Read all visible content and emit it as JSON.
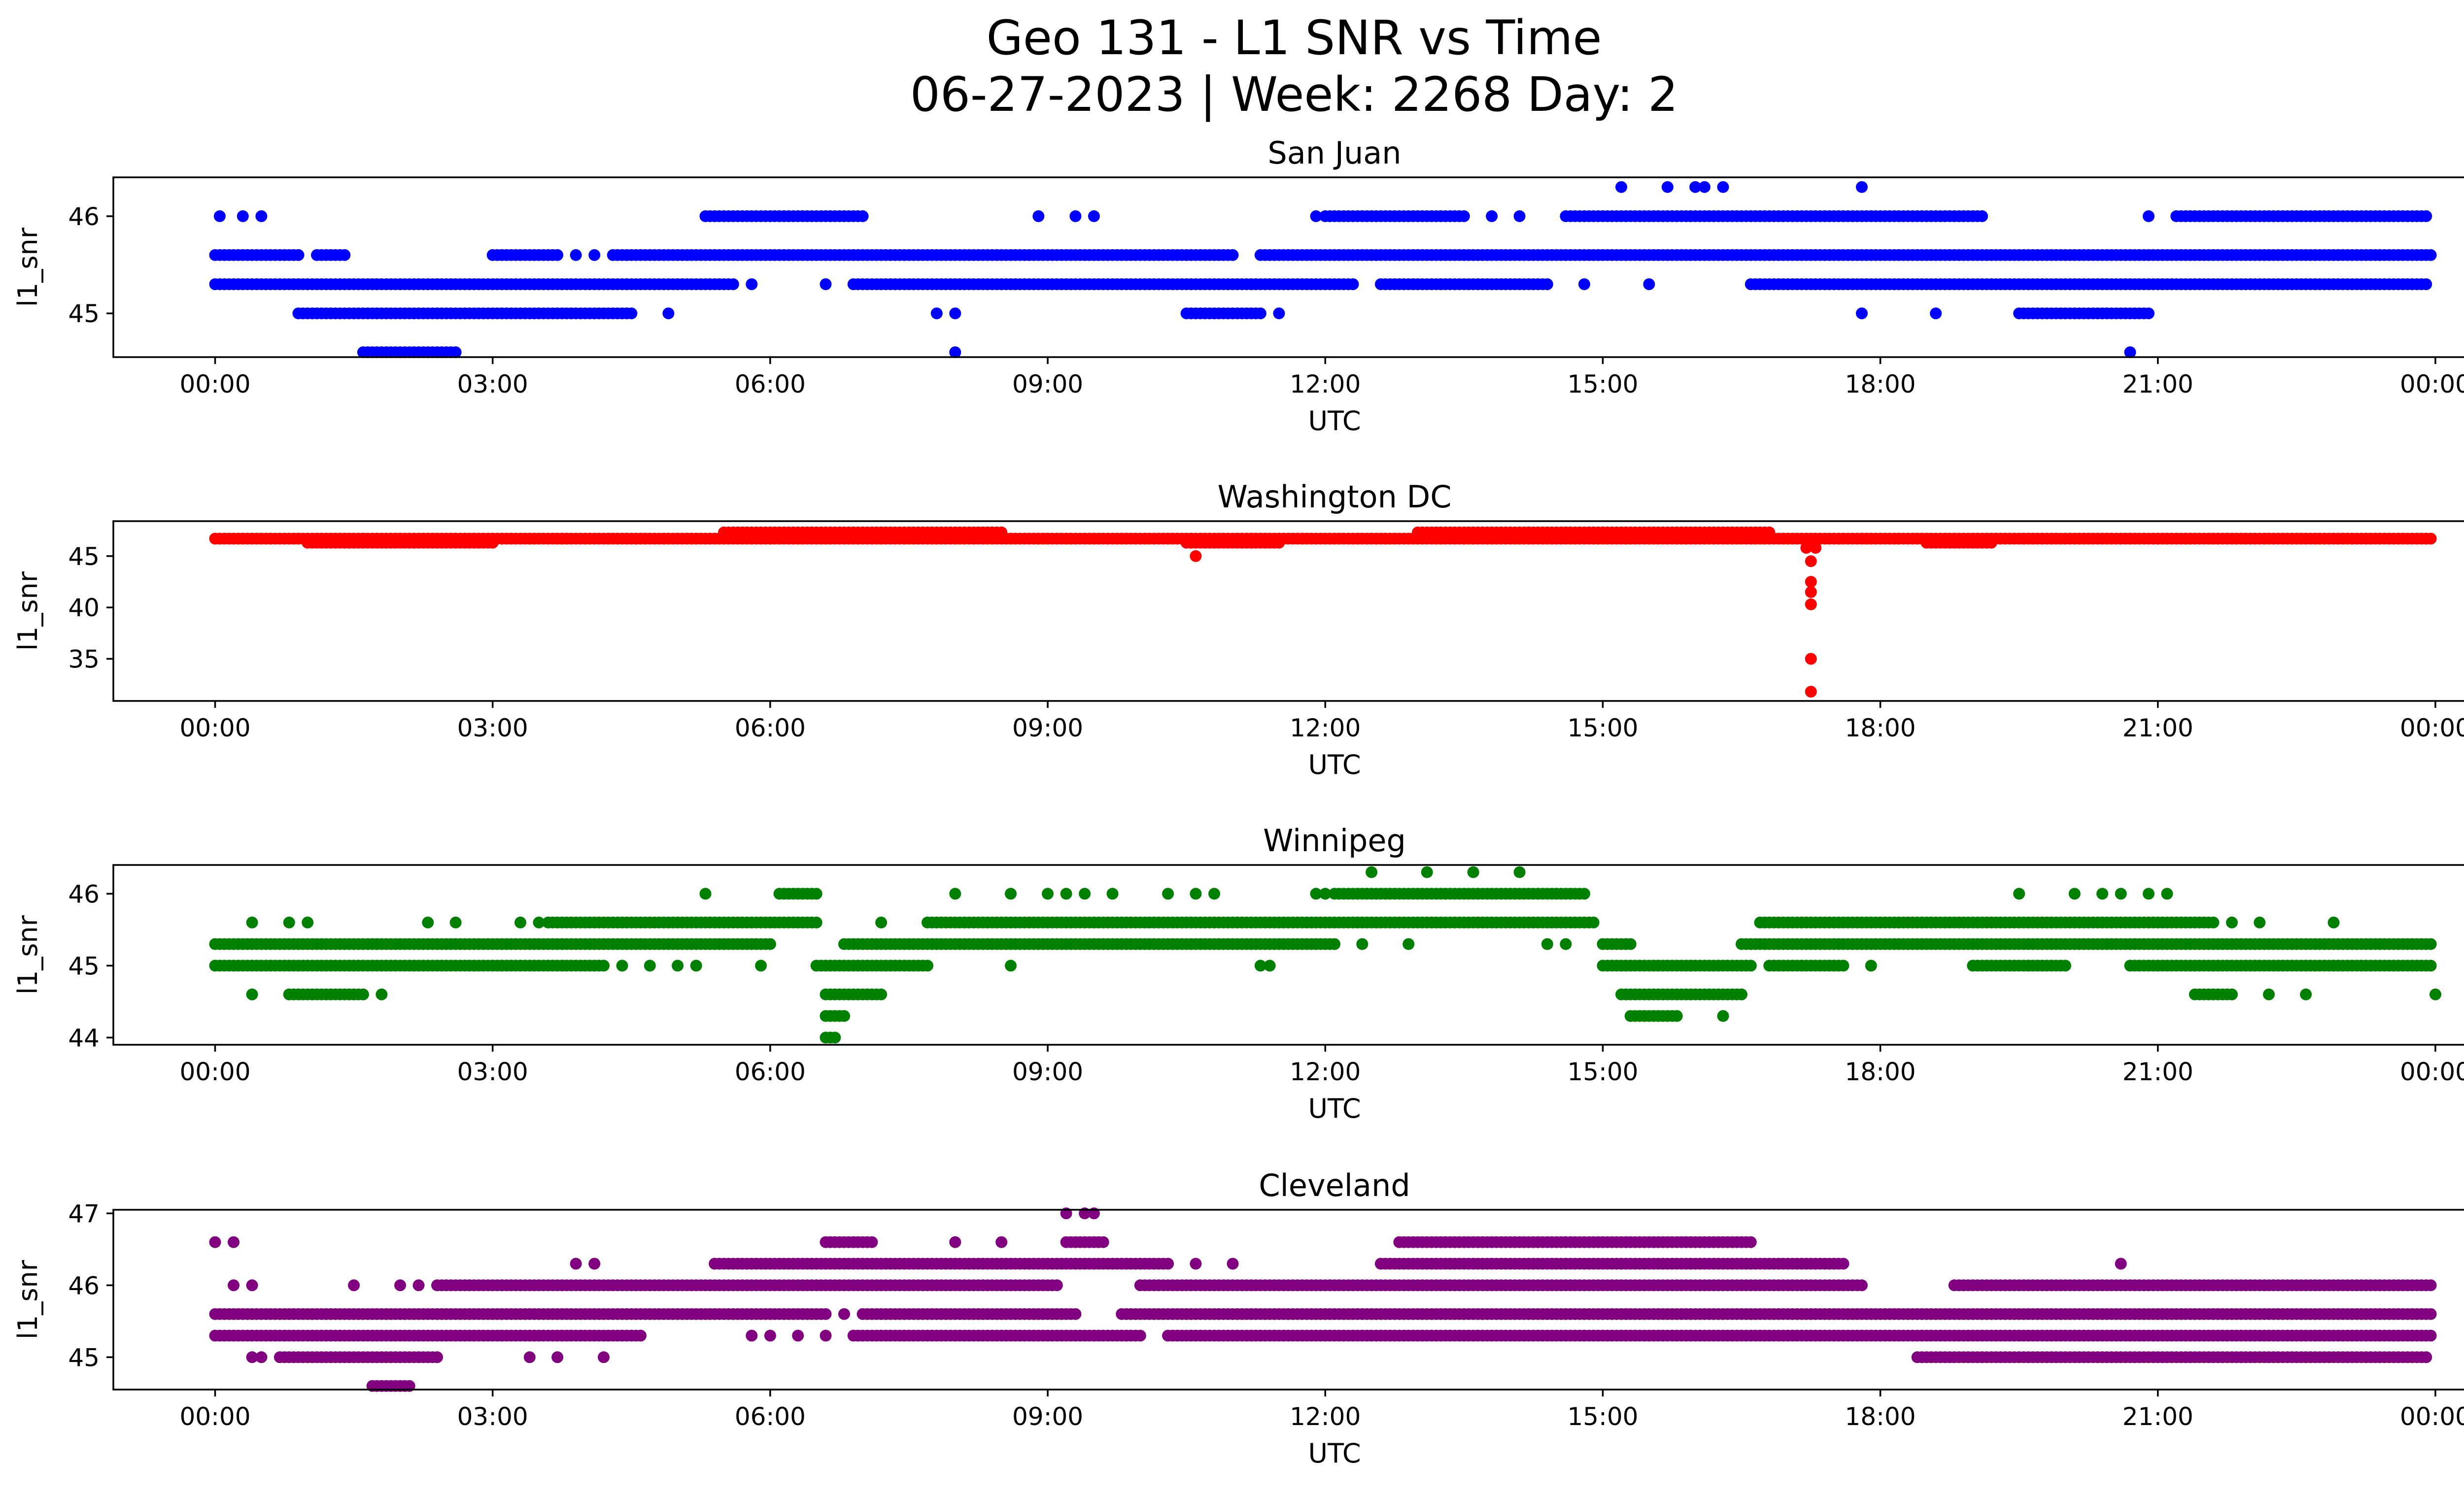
{
  "title_line1": "Geo 131 - L1 SNR vs Time",
  "title_line2": "06-27-2023 | Week: 2268 Day: 2",
  "chart_data": [
    {
      "type": "scatter",
      "title": "San Juan",
      "color": "#0000ff",
      "xlabel": "UTC",
      "ylabel": "l1_snr",
      "xlim_hours": [
        -1.1,
        25.3
      ],
      "xticks": [
        "00:00",
        "03:00",
        "06:00",
        "09:00",
        "12:00",
        "15:00",
        "18:00",
        "21:00",
        "00:00"
      ],
      "ylim": [
        44.55,
        46.4
      ],
      "yticks": [
        45,
        46
      ],
      "levels": [
        {
          "y": 45.3,
          "ranges": [
            [
              0,
              5.6
            ],
            [
              6.9,
              12.3
            ],
            [
              12.6,
              14.4
            ],
            [
              16.6,
              23.9
            ]
          ],
          "points": [
            5.8,
            6.6,
            14.8,
            15.5
          ]
        },
        {
          "y": 45.6,
          "ranges": [
            [
              0,
              0.9
            ],
            [
              1.1,
              1.4
            ],
            [
              3.0,
              3.7
            ],
            [
              4.3,
              11.0
            ],
            [
              11.3,
              23.95
            ]
          ],
          "points": [
            3.9,
            4.1
          ]
        },
        {
          "y": 46.0,
          "ranges": [
            [
              5.3,
              7.0
            ],
            [
              12.0,
              13.5
            ],
            [
              14.6,
              19.1
            ],
            [
              21.2,
              23.9
            ]
          ],
          "points": [
            0.05,
            0.3,
            0.5,
            8.9,
            9.3,
            9.5,
            11.9,
            13.8,
            14.1,
            20.9
          ]
        },
        {
          "y": 45.0,
          "ranges": [
            [
              0.9,
              4.5
            ],
            [
              10.5,
              11.3
            ],
            [
              19.5,
              20.9
            ]
          ],
          "points": [
            4.9,
            7.8,
            8.0,
            11.5,
            17.8,
            18.6
          ]
        },
        {
          "y": 44.6,
          "ranges": [
            [
              1.6,
              2.6
            ]
          ],
          "points": [
            8.0,
            20.7
          ]
        },
        {
          "y": 46.3,
          "ranges": [],
          "points": [
            15.2,
            15.7,
            16.0,
            16.1,
            16.3,
            17.8
          ]
        }
      ]
    },
    {
      "type": "scatter",
      "title": "Washington DC",
      "color": "#ff0000",
      "xlabel": "UTC",
      "ylabel": "l1_snr",
      "xlim_hours": [
        -1.1,
        25.3
      ],
      "xticks": [
        "00:00",
        "03:00",
        "06:00",
        "09:00",
        "12:00",
        "15:00",
        "18:00",
        "21:00",
        "00:00"
      ],
      "ylim": [
        30.9,
        48.4
      ],
      "yticks": [
        35,
        40,
        45
      ],
      "levels": [
        {
          "y": 46.7,
          "ranges": [
            [
              0,
              23.95
            ]
          ],
          "points": []
        },
        {
          "y": 46.3,
          "ranges": [
            [
              1.0,
              3.0
            ],
            [
              10.5,
              11.5
            ],
            [
              18.5,
              19.2
            ]
          ],
          "points": []
        },
        {
          "y": 47.3,
          "ranges": [
            [
              5.5,
              8.5
            ],
            [
              13.0,
              16.8
            ]
          ],
          "points": [
            14.2,
            14.6,
            15.0,
            16.0
          ]
        },
        {
          "y": 45.8,
          "ranges": [],
          "points": [
            17.2,
            17.3
          ]
        },
        {
          "y": 45.0,
          "ranges": [],
          "points": [
            10.6
          ]
        },
        {
          "y": 44.5,
          "ranges": [],
          "points": [
            17.25
          ]
        },
        {
          "y": 42.5,
          "ranges": [],
          "points": [
            17.25
          ]
        },
        {
          "y": 41.5,
          "ranges": [],
          "points": [
            17.25
          ]
        },
        {
          "y": 40.3,
          "ranges": [],
          "points": [
            17.25
          ]
        },
        {
          "y": 35.0,
          "ranges": [],
          "points": [
            17.25
          ]
        },
        {
          "y": 31.8,
          "ranges": [],
          "points": [
            17.25
          ]
        }
      ]
    },
    {
      "type": "scatter",
      "title": "Winnipeg",
      "color": "#008000",
      "xlabel": "UTC",
      "ylabel": "l1_snr",
      "xlim_hours": [
        -1.1,
        25.3
      ],
      "xticks": [
        "00:00",
        "03:00",
        "06:00",
        "09:00",
        "12:00",
        "15:00",
        "18:00",
        "21:00",
        "00:00"
      ],
      "ylim": [
        43.9,
        46.4
      ],
      "yticks": [
        44,
        45,
        46
      ],
      "levels": [
        {
          "y": 45.0,
          "ranges": [
            [
              0,
              4.2
            ],
            [
              6.5,
              7.7
            ],
            [
              15.0,
              16.6
            ],
            [
              16.8,
              17.6
            ],
            [
              19.0,
              20.0
            ],
            [
              20.7,
              23.95
            ]
          ],
          "points": [
            4.4,
            4.7,
            5.0,
            5.2,
            5.9,
            8.6,
            11.3,
            11.4,
            17.9,
            19.6
          ]
        },
        {
          "y": 45.3,
          "ranges": [
            [
              0,
              6.0
            ],
            [
              6.8,
              12.1
            ],
            [
              15.0,
              15.3
            ],
            [
              16.5,
              23.95
            ]
          ],
          "points": [
            12.4,
            12.9,
            14.4,
            14.6
          ]
        },
        {
          "y": 45.6,
          "ranges": [
            [
              3.6,
              6.5
            ],
            [
              7.7,
              14.9
            ],
            [
              16.7,
              21.6
            ]
          ],
          "points": [
            0.4,
            0.8,
            1.0,
            2.3,
            2.6,
            3.3,
            3.5,
            7.2,
            21.8,
            22.1,
            22.9
          ]
        },
        {
          "y": 46.0,
          "ranges": [
            [
              6.1,
              6.5
            ],
            [
              12.1,
              14.8
            ]
          ],
          "points": [
            5.3,
            8.0,
            8.6,
            9.0,
            9.2,
            9.4,
            9.7,
            10.3,
            10.6,
            10.8,
            11.9,
            12.0,
            19.5,
            20.1,
            20.4,
            20.6,
            20.9,
            21.1
          ]
        },
        {
          "y": 44.6,
          "ranges": [
            [
              0.8,
              1.6
            ],
            [
              6.6,
              7.2
            ],
            [
              15.2,
              16.5
            ],
            [
              21.4,
              21.8
            ]
          ],
          "points": [
            0.4,
            1.8,
            22.2,
            22.6,
            24.0
          ]
        },
        {
          "y": 44.3,
          "ranges": [
            [
              6.6,
              6.8
            ],
            [
              15.3,
              15.8
            ]
          ],
          "points": [
            16.3
          ]
        },
        {
          "y": 44.0,
          "ranges": [
            [
              6.6,
              6.7
            ]
          ],
          "points": []
        },
        {
          "y": 46.3,
          "ranges": [],
          "points": [
            12.5,
            13.1,
            13.6,
            14.1
          ]
        }
      ]
    },
    {
      "type": "scatter",
      "title": "Cleveland",
      "color": "#800080",
      "xlabel": "UTC",
      "ylabel": "l1_snr",
      "xlim_hours": [
        -1.1,
        25.3
      ],
      "xticks": [
        "00:00",
        "03:00",
        "06:00",
        "09:00",
        "12:00",
        "15:00",
        "18:00",
        "21:00",
        "00:00"
      ],
      "ylim": [
        44.55,
        47.05
      ],
      "yticks": [
        45,
        46,
        47
      ],
      "levels": [
        {
          "y": 45.3,
          "ranges": [
            [
              0,
              4.6
            ],
            [
              6.9,
              10.0
            ],
            [
              10.3,
              23.95
            ]
          ],
          "points": [
            5.8,
            6.0,
            6.3,
            6.6
          ]
        },
        {
          "y": 45.6,
          "ranges": [
            [
              0,
              6.6
            ],
            [
              7.0,
              9.3
            ],
            [
              9.8,
              23.95
            ]
          ],
          "points": [
            6.8
          ]
        },
        {
          "y": 46.0,
          "ranges": [
            [
              2.4,
              9.1
            ],
            [
              10.0,
              17.8
            ],
            [
              18.8,
              23.95
            ]
          ],
          "points": [
            0.2,
            0.4,
            1.5,
            2.0,
            2.2
          ]
        },
        {
          "y": 46.3,
          "ranges": [
            [
              5.4,
              10.3
            ],
            [
              12.6,
              17.6
            ]
          ],
          "points": [
            3.9,
            4.1,
            10.6,
            11.0,
            20.6
          ]
        },
        {
          "y": 45.0,
          "ranges": [
            [
              0.7,
              2.4
            ],
            [
              18.4,
              23.9
            ]
          ],
          "points": [
            0.4,
            0.5,
            3.4,
            3.7,
            4.2
          ]
        },
        {
          "y": 46.6,
          "ranges": [
            [
              6.6,
              7.1
            ],
            [
              9.2,
              9.6
            ],
            [
              12.8,
              16.6
            ]
          ],
          "points": [
            0.0,
            0.2,
            8.0,
            8.5
          ]
        },
        {
          "y": 44.6,
          "ranges": [
            [
              1.7,
              2.1
            ]
          ],
          "points": []
        },
        {
          "y": 47.0,
          "ranges": [],
          "points": [
            9.2,
            9.4,
            9.5
          ]
        }
      ]
    }
  ]
}
